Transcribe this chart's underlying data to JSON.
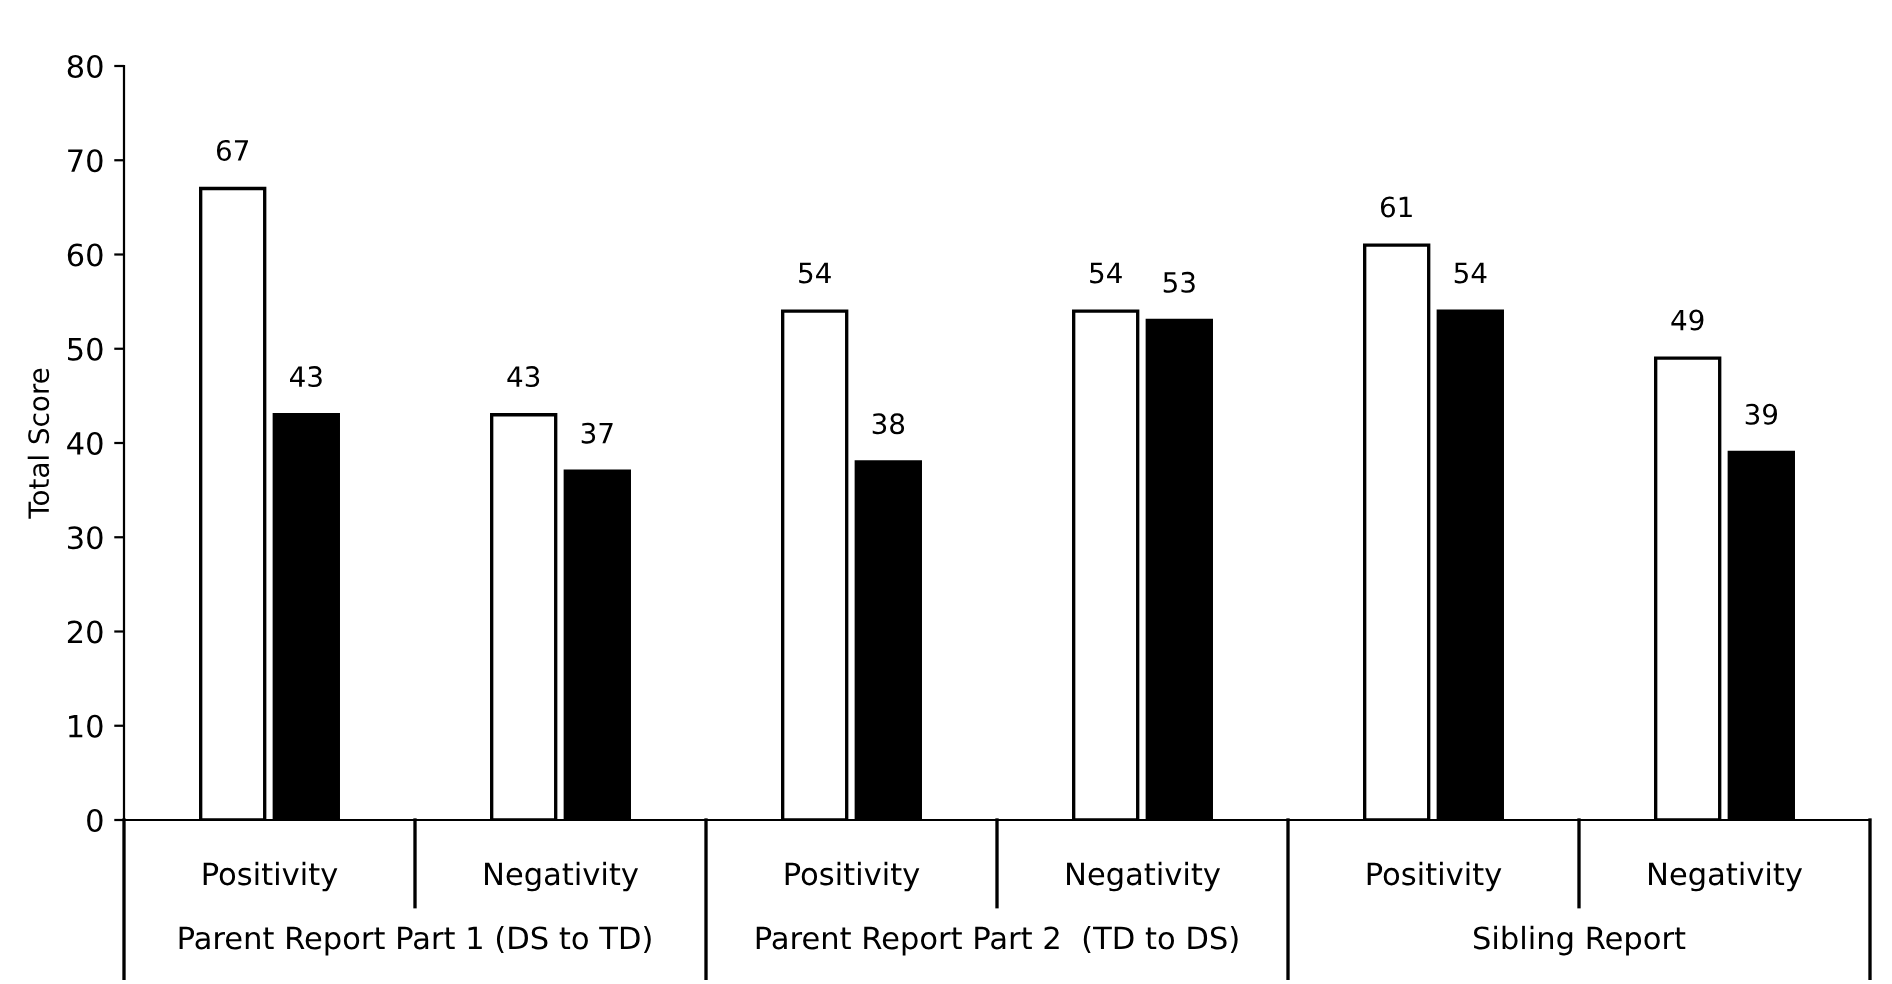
{
  "chart_data": {
    "type": "bar",
    "ylabel": "Total Score",
    "categories": [
      "Positivity",
      "Negativity",
      "Positivity",
      "Negativity",
      "Positivity",
      "Negativity"
    ],
    "series": [
      {
        "color": "#ffffff",
        "values": [
          67,
          43,
          54,
          54,
          61,
          49
        ]
      },
      {
        "color": "#000000",
        "values": [
          43,
          37,
          38,
          53,
          54,
          39
        ]
      }
    ],
    "ylim": [
      0,
      80
    ],
    "yticks": [
      0,
      10,
      20,
      30,
      40,
      50,
      60,
      70,
      80
    ],
    "grid": false,
    "data_labels": true,
    "legend": false,
    "annotations": [
      "Parent Report Part 1 (DS to TD)",
      "Parent Report Part 2  (TD to DS)",
      "Sibling Report"
    ]
  }
}
